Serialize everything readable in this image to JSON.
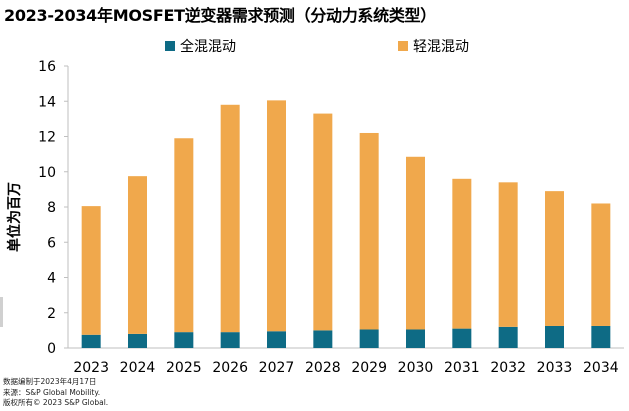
{
  "chart_data": {
    "type": "bar",
    "stacked": true,
    "title": "2023-2034年MOSFET逆变器需求预测（分动力系统类型）",
    "ylabel": "单位为百万",
    "xlabel": "",
    "ylim": [
      0,
      16
    ],
    "yticks": [
      "0",
      "2",
      "4",
      "6",
      "8",
      "10",
      "12",
      "14",
      "16"
    ],
    "categories": [
      "2023",
      "2024",
      "2025",
      "2026",
      "2027",
      "2028",
      "2029",
      "2030",
      "2031",
      "2032",
      "2033",
      "2034"
    ],
    "series": [
      {
        "name": "全混混动",
        "color": "#0e6b85",
        "values": [
          0.75,
          0.8,
          0.9,
          0.9,
          0.95,
          1.0,
          1.05,
          1.05,
          1.1,
          1.2,
          1.25,
          1.25
        ]
      },
      {
        "name": "轻混混动",
        "color": "#f0a84c",
        "values": [
          7.3,
          8.95,
          11.0,
          12.9,
          13.1,
          12.3,
          11.15,
          9.8,
          8.5,
          8.2,
          7.65,
          6.95
        ]
      }
    ],
    "legend_position": "top",
    "grid": false
  },
  "notes": [
    "数据编制于2023年4月17日",
    "来源：S&P Global Mobility.",
    "版权所有© 2023 S&P Global."
  ]
}
